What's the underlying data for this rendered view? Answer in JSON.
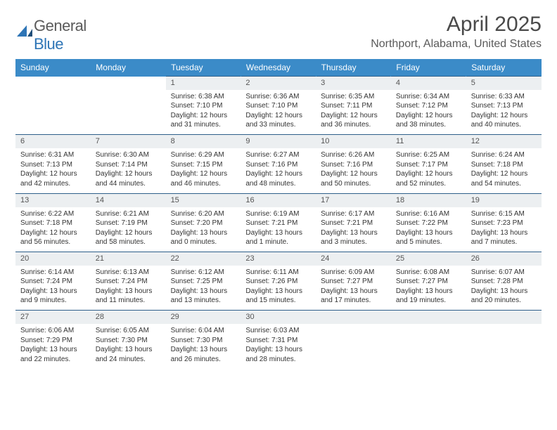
{
  "logo": {
    "text1": "General",
    "text2": "Blue"
  },
  "title": "April 2025",
  "location": "Northport, Alabama, United States",
  "colors": {
    "header_bg": "#3b8bc8",
    "header_fg": "#ffffff",
    "daynum_bg": "#eceff1",
    "rule": "#2e5f8a",
    "logo_gray": "#5a5a5a",
    "logo_blue": "#2e75b6"
  },
  "day_headers": [
    "Sunday",
    "Monday",
    "Tuesday",
    "Wednesday",
    "Thursday",
    "Friday",
    "Saturday"
  ],
  "weeks": [
    [
      null,
      null,
      {
        "n": "1",
        "sr": "Sunrise: 6:38 AM",
        "ss": "Sunset: 7:10 PM",
        "d1": "Daylight: 12 hours",
        "d2": "and 31 minutes."
      },
      {
        "n": "2",
        "sr": "Sunrise: 6:36 AM",
        "ss": "Sunset: 7:10 PM",
        "d1": "Daylight: 12 hours",
        "d2": "and 33 minutes."
      },
      {
        "n": "3",
        "sr": "Sunrise: 6:35 AM",
        "ss": "Sunset: 7:11 PM",
        "d1": "Daylight: 12 hours",
        "d2": "and 36 minutes."
      },
      {
        "n": "4",
        "sr": "Sunrise: 6:34 AM",
        "ss": "Sunset: 7:12 PM",
        "d1": "Daylight: 12 hours",
        "d2": "and 38 minutes."
      },
      {
        "n": "5",
        "sr": "Sunrise: 6:33 AM",
        "ss": "Sunset: 7:13 PM",
        "d1": "Daylight: 12 hours",
        "d2": "and 40 minutes."
      }
    ],
    [
      {
        "n": "6",
        "sr": "Sunrise: 6:31 AM",
        "ss": "Sunset: 7:13 PM",
        "d1": "Daylight: 12 hours",
        "d2": "and 42 minutes."
      },
      {
        "n": "7",
        "sr": "Sunrise: 6:30 AM",
        "ss": "Sunset: 7:14 PM",
        "d1": "Daylight: 12 hours",
        "d2": "and 44 minutes."
      },
      {
        "n": "8",
        "sr": "Sunrise: 6:29 AM",
        "ss": "Sunset: 7:15 PM",
        "d1": "Daylight: 12 hours",
        "d2": "and 46 minutes."
      },
      {
        "n": "9",
        "sr": "Sunrise: 6:27 AM",
        "ss": "Sunset: 7:16 PM",
        "d1": "Daylight: 12 hours",
        "d2": "and 48 minutes."
      },
      {
        "n": "10",
        "sr": "Sunrise: 6:26 AM",
        "ss": "Sunset: 7:16 PM",
        "d1": "Daylight: 12 hours",
        "d2": "and 50 minutes."
      },
      {
        "n": "11",
        "sr": "Sunrise: 6:25 AM",
        "ss": "Sunset: 7:17 PM",
        "d1": "Daylight: 12 hours",
        "d2": "and 52 minutes."
      },
      {
        "n": "12",
        "sr": "Sunrise: 6:24 AM",
        "ss": "Sunset: 7:18 PM",
        "d1": "Daylight: 12 hours",
        "d2": "and 54 minutes."
      }
    ],
    [
      {
        "n": "13",
        "sr": "Sunrise: 6:22 AM",
        "ss": "Sunset: 7:18 PM",
        "d1": "Daylight: 12 hours",
        "d2": "and 56 minutes."
      },
      {
        "n": "14",
        "sr": "Sunrise: 6:21 AM",
        "ss": "Sunset: 7:19 PM",
        "d1": "Daylight: 12 hours",
        "d2": "and 58 minutes."
      },
      {
        "n": "15",
        "sr": "Sunrise: 6:20 AM",
        "ss": "Sunset: 7:20 PM",
        "d1": "Daylight: 13 hours",
        "d2": "and 0 minutes."
      },
      {
        "n": "16",
        "sr": "Sunrise: 6:19 AM",
        "ss": "Sunset: 7:21 PM",
        "d1": "Daylight: 13 hours",
        "d2": "and 1 minute."
      },
      {
        "n": "17",
        "sr": "Sunrise: 6:17 AM",
        "ss": "Sunset: 7:21 PM",
        "d1": "Daylight: 13 hours",
        "d2": "and 3 minutes."
      },
      {
        "n": "18",
        "sr": "Sunrise: 6:16 AM",
        "ss": "Sunset: 7:22 PM",
        "d1": "Daylight: 13 hours",
        "d2": "and 5 minutes."
      },
      {
        "n": "19",
        "sr": "Sunrise: 6:15 AM",
        "ss": "Sunset: 7:23 PM",
        "d1": "Daylight: 13 hours",
        "d2": "and 7 minutes."
      }
    ],
    [
      {
        "n": "20",
        "sr": "Sunrise: 6:14 AM",
        "ss": "Sunset: 7:24 PM",
        "d1": "Daylight: 13 hours",
        "d2": "and 9 minutes."
      },
      {
        "n": "21",
        "sr": "Sunrise: 6:13 AM",
        "ss": "Sunset: 7:24 PM",
        "d1": "Daylight: 13 hours",
        "d2": "and 11 minutes."
      },
      {
        "n": "22",
        "sr": "Sunrise: 6:12 AM",
        "ss": "Sunset: 7:25 PM",
        "d1": "Daylight: 13 hours",
        "d2": "and 13 minutes."
      },
      {
        "n": "23",
        "sr": "Sunrise: 6:11 AM",
        "ss": "Sunset: 7:26 PM",
        "d1": "Daylight: 13 hours",
        "d2": "and 15 minutes."
      },
      {
        "n": "24",
        "sr": "Sunrise: 6:09 AM",
        "ss": "Sunset: 7:27 PM",
        "d1": "Daylight: 13 hours",
        "d2": "and 17 minutes."
      },
      {
        "n": "25",
        "sr": "Sunrise: 6:08 AM",
        "ss": "Sunset: 7:27 PM",
        "d1": "Daylight: 13 hours",
        "d2": "and 19 minutes."
      },
      {
        "n": "26",
        "sr": "Sunrise: 6:07 AM",
        "ss": "Sunset: 7:28 PM",
        "d1": "Daylight: 13 hours",
        "d2": "and 20 minutes."
      }
    ],
    [
      {
        "n": "27",
        "sr": "Sunrise: 6:06 AM",
        "ss": "Sunset: 7:29 PM",
        "d1": "Daylight: 13 hours",
        "d2": "and 22 minutes."
      },
      {
        "n": "28",
        "sr": "Sunrise: 6:05 AM",
        "ss": "Sunset: 7:30 PM",
        "d1": "Daylight: 13 hours",
        "d2": "and 24 minutes."
      },
      {
        "n": "29",
        "sr": "Sunrise: 6:04 AM",
        "ss": "Sunset: 7:30 PM",
        "d1": "Daylight: 13 hours",
        "d2": "and 26 minutes."
      },
      {
        "n": "30",
        "sr": "Sunrise: 6:03 AM",
        "ss": "Sunset: 7:31 PM",
        "d1": "Daylight: 13 hours",
        "d2": "and 28 minutes."
      },
      null,
      null,
      null
    ]
  ]
}
